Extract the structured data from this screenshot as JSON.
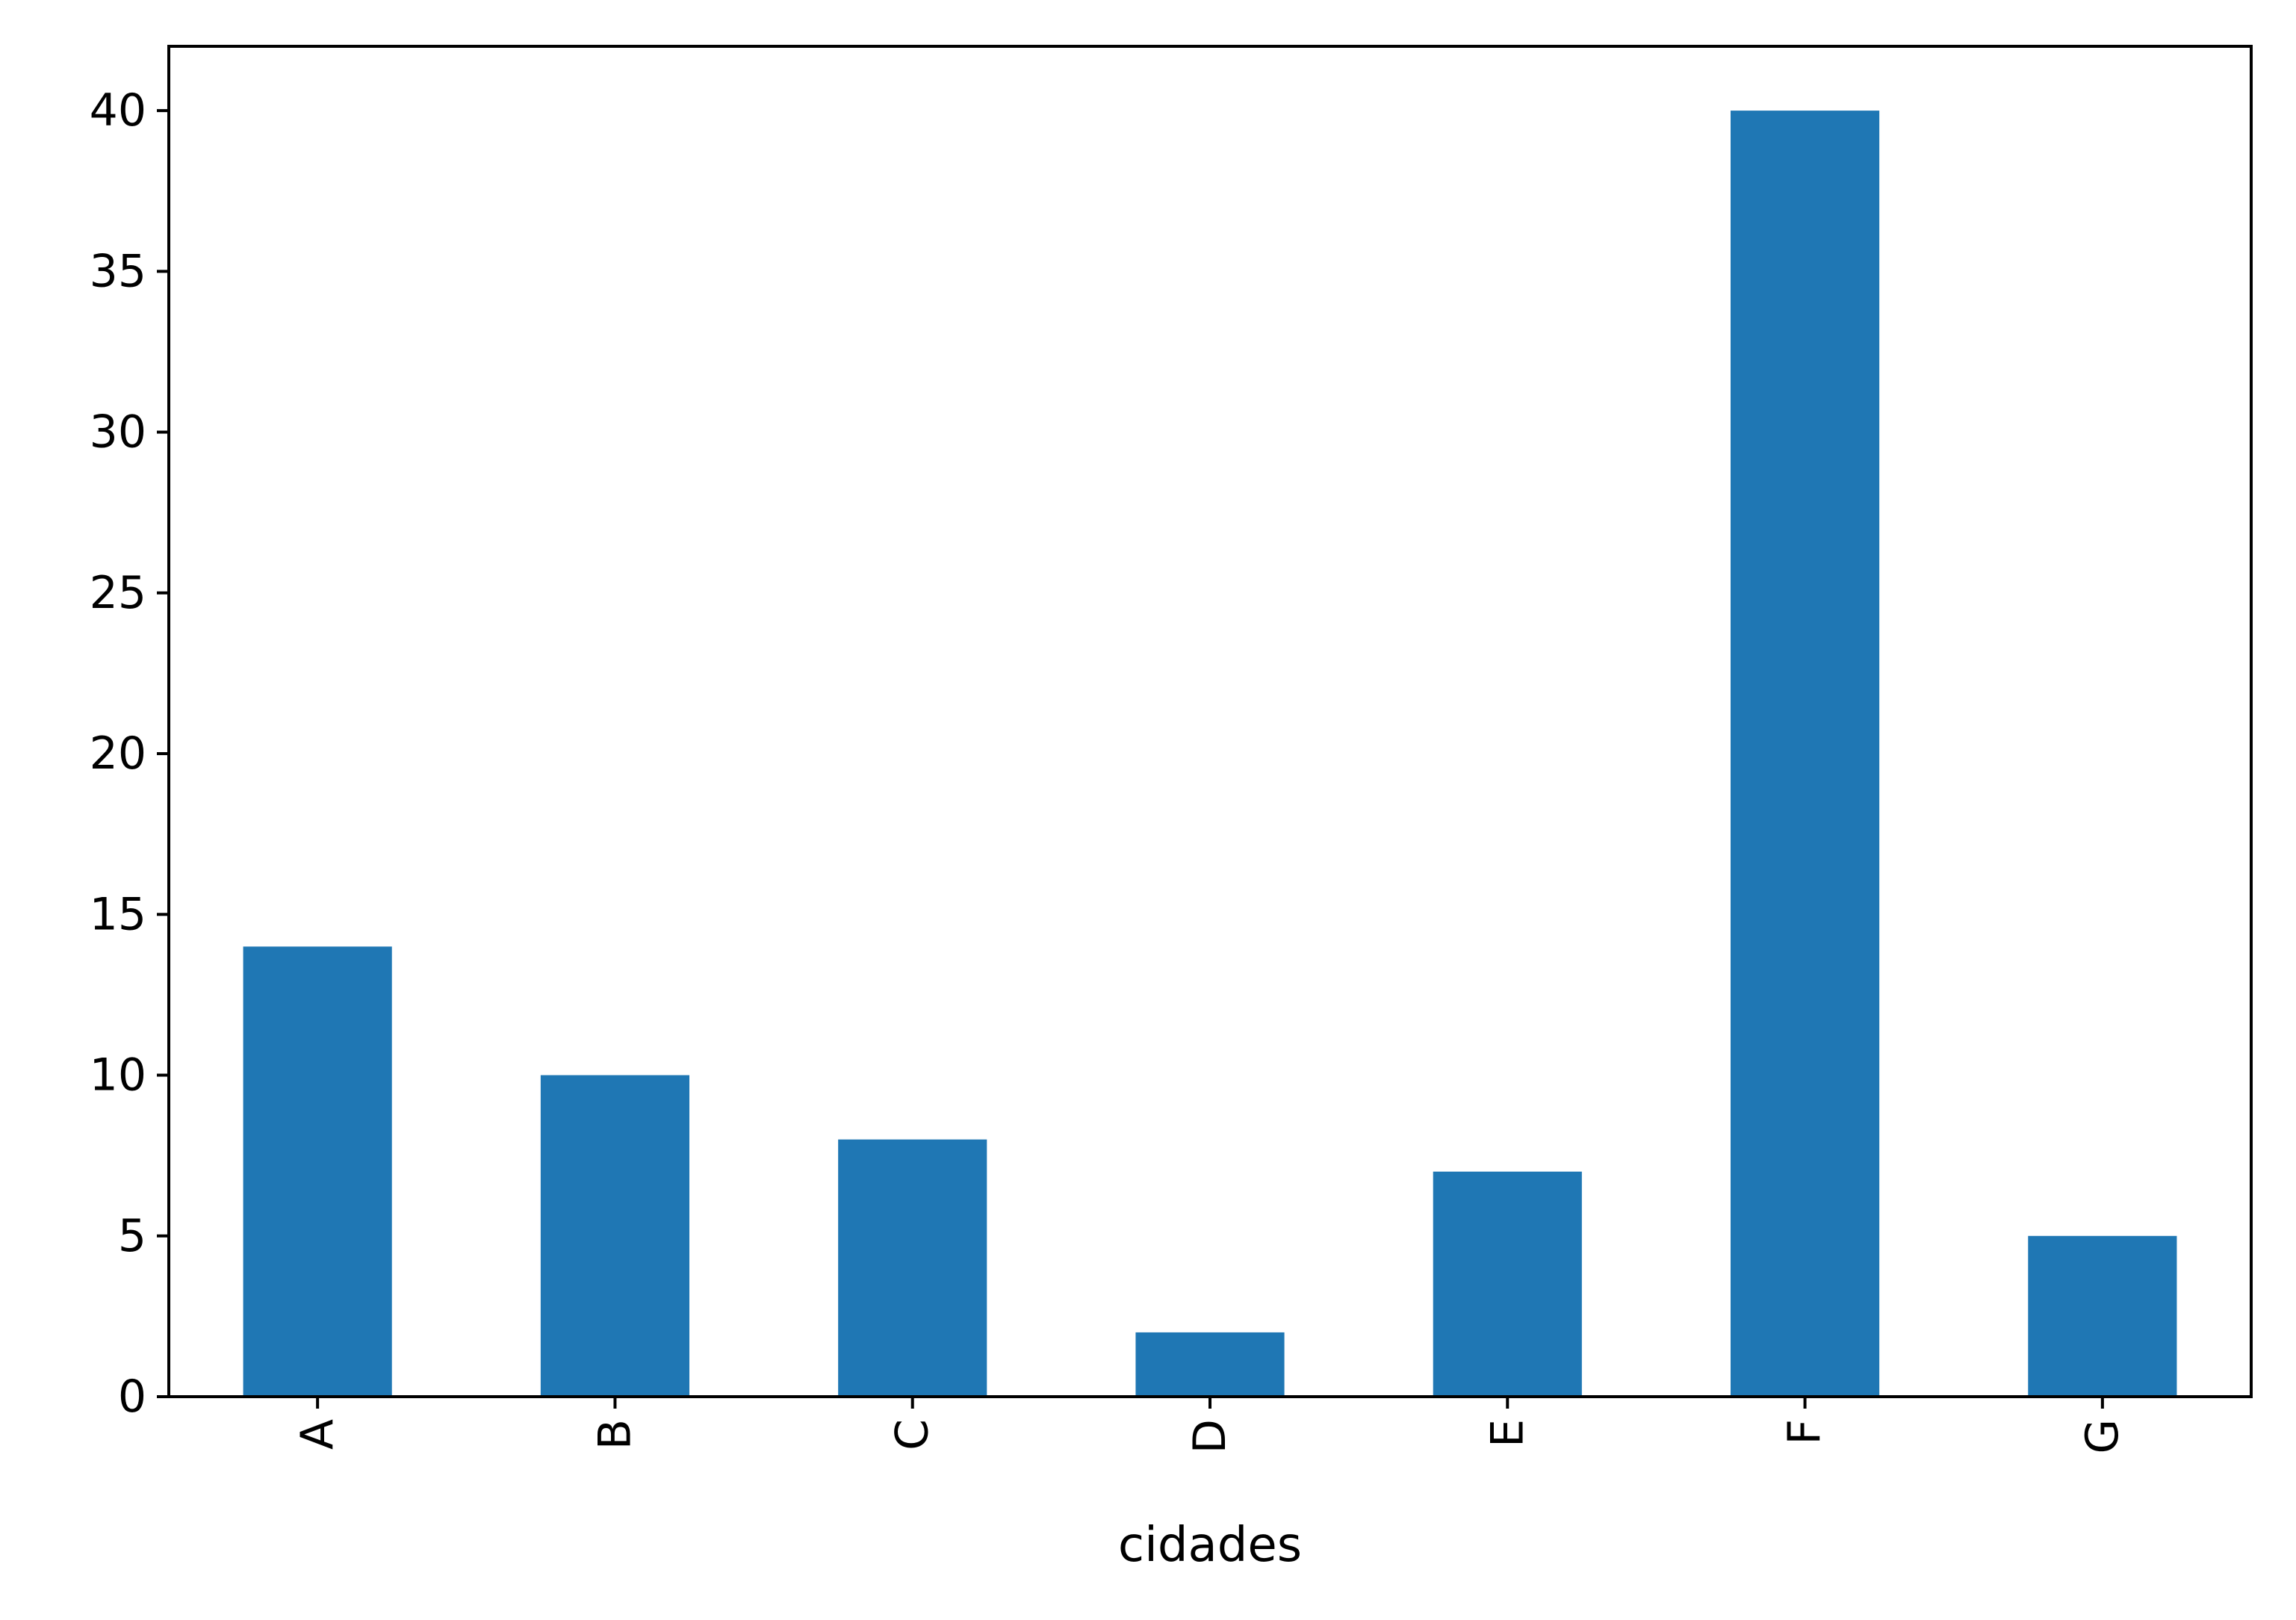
{
  "chart_data": {
    "type": "bar",
    "title": "",
    "xlabel": "cidades",
    "ylabel": "",
    "categories": [
      "A",
      "B",
      "C",
      "D",
      "E",
      "F",
      "G"
    ],
    "values": [
      14,
      10,
      8,
      2,
      7,
      40,
      5
    ],
    "ylim": [
      0,
      42
    ],
    "yticks": [
      0,
      5,
      10,
      15,
      20,
      25,
      30,
      35,
      40
    ],
    "ytick_labels": [
      "0",
      "5",
      "10",
      "15",
      "20",
      "25",
      "30",
      "35",
      "40"
    ],
    "xtick_rotation": "vertical",
    "grid": false,
    "legend": "none",
    "bar_color": "#1f77b4",
    "axis_color": "#000000"
  }
}
